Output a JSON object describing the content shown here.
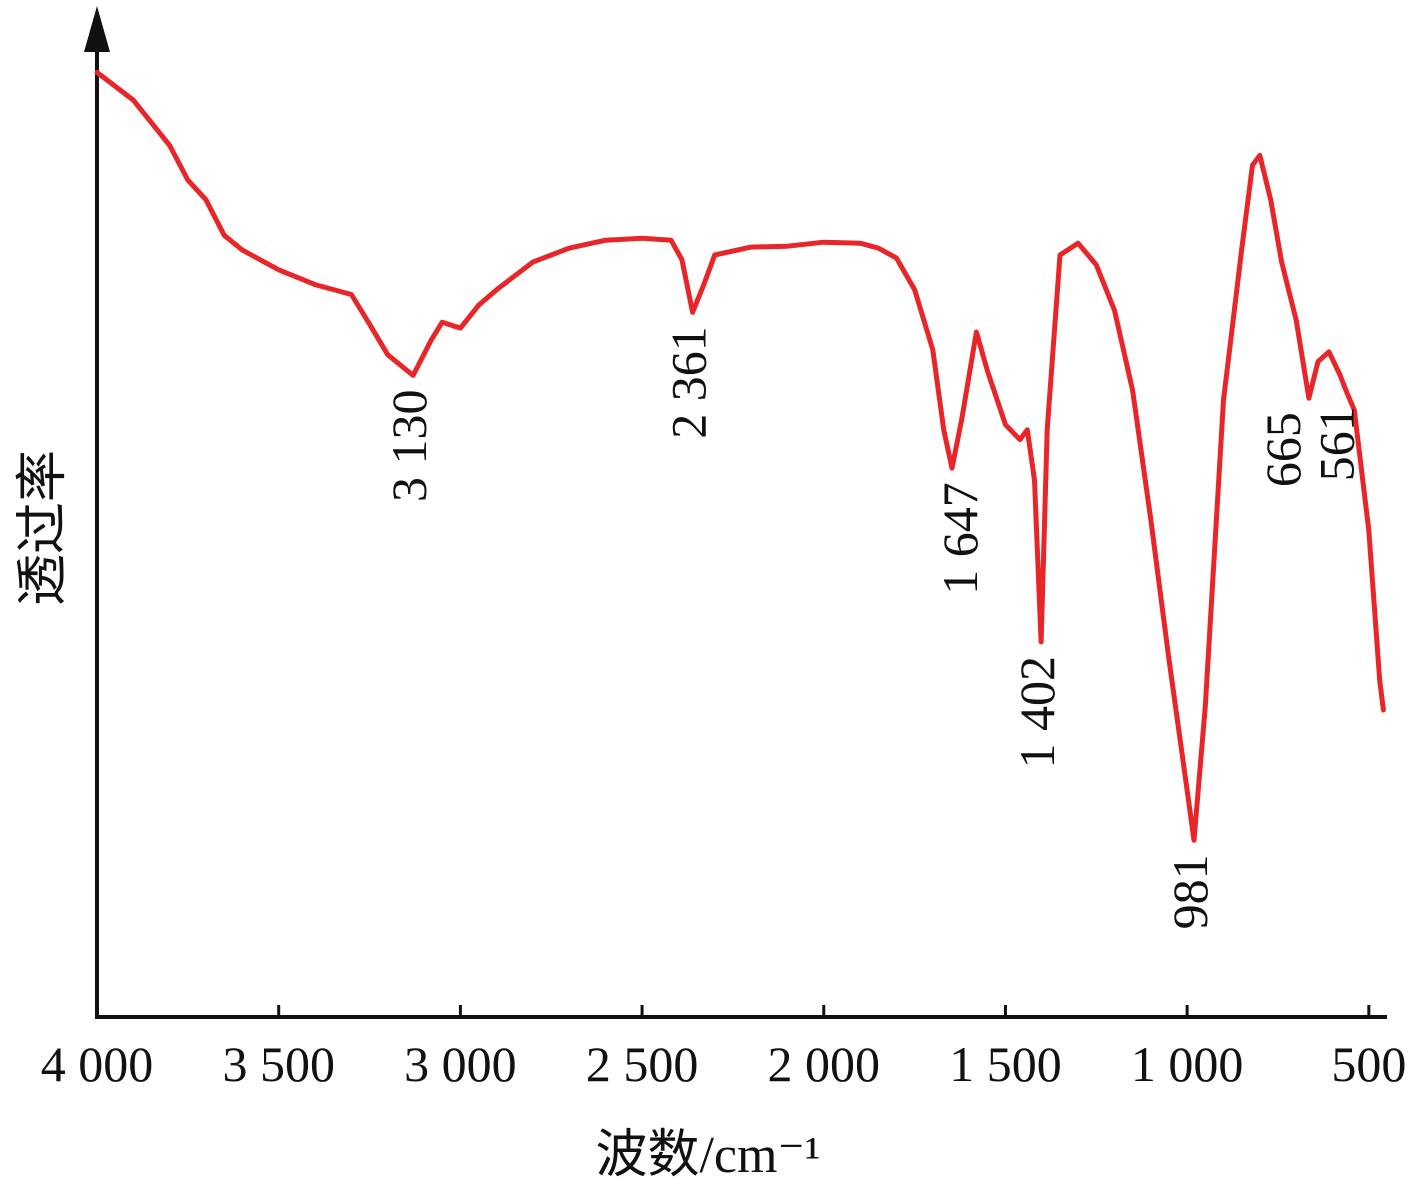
{
  "chart_data": {
    "type": "line",
    "x_label": "波数/cm⁻¹",
    "y_label": "透过率",
    "xlim": [
      4000,
      450
    ],
    "ylim": [
      0,
      100
    ],
    "xticks": [
      {
        "value": 4000,
        "label": "4 000"
      },
      {
        "value": 3500,
        "label": "3 500"
      },
      {
        "value": 3000,
        "label": "3 000"
      },
      {
        "value": 2500,
        "label": "2 500"
      },
      {
        "value": 2000,
        "label": "2 000"
      },
      {
        "value": 1500,
        "label": "1 500"
      },
      {
        "value": 1000,
        "label": "1 000"
      },
      500
    ],
    "series": [
      {
        "color": "#e8262a",
        "x": [
          4000,
          3900,
          3800,
          3750,
          3700,
          3650,
          3600,
          3500,
          3400,
          3300,
          3250,
          3200,
          3130,
          3080,
          3050,
          3000,
          2950,
          2900,
          2800,
          2700,
          2600,
          2500,
          2420,
          2390,
          2361,
          2330,
          2300,
          2200,
          2100,
          2000,
          1900,
          1850,
          1800,
          1750,
          1700,
          1670,
          1647,
          1620,
          1580,
          1550,
          1500,
          1460,
          1440,
          1420,
          1402,
          1385,
          1350,
          1300,
          1250,
          1200,
          1150,
          1100,
          1050,
          1000,
          981,
          950,
          900,
          850,
          820,
          800,
          770,
          740,
          700,
          665,
          640,
          610,
          580,
          561,
          540,
          500,
          470,
          460
        ],
        "values": [
          95.7,
          92.9,
          88.3,
          84.8,
          82.8,
          79.2,
          77.7,
          75.7,
          74.2,
          73.2,
          70.2,
          67.1,
          65.0,
          68.6,
          70.4,
          69.8,
          72.1,
          73.7,
          76.5,
          77.9,
          78.7,
          78.9,
          78.7,
          76.7,
          71.4,
          74.2,
          77.2,
          78.0,
          78.1,
          78.5,
          78.4,
          77.9,
          76.9,
          73.7,
          67.6,
          59.5,
          55.6,
          60.6,
          69.4,
          65.5,
          60.0,
          58.5,
          59.5,
          54.4,
          38.0,
          59.5,
          77.2,
          78.4,
          76.2,
          71.6,
          63.5,
          50.4,
          36.2,
          23.0,
          17.9,
          31.5,
          62.5,
          77.7,
          86.3,
          87.3,
          82.8,
          76.5,
          70.6,
          62.7,
          66.4,
          67.4,
          65.1,
          63.3,
          61.5,
          49.3,
          34.1,
          31.1
        ]
      }
    ],
    "annotations": [
      {
        "text": "3 130",
        "x": 3130,
        "y": 65.0
      },
      {
        "text": "2 361",
        "x": 2361,
        "y": 71.4
      },
      {
        "text": "1 647",
        "x": 1647,
        "y": 55.6
      },
      {
        "text": "1 402",
        "x": 1402,
        "y": 38.0
      },
      {
        "text": "981",
        "x": 981,
        "y": 17.9
      },
      {
        "text": "665",
        "x": 665,
        "y": 62.7
      },
      {
        "text": "561",
        "x": 561,
        "y": 63.3
      }
    ]
  }
}
